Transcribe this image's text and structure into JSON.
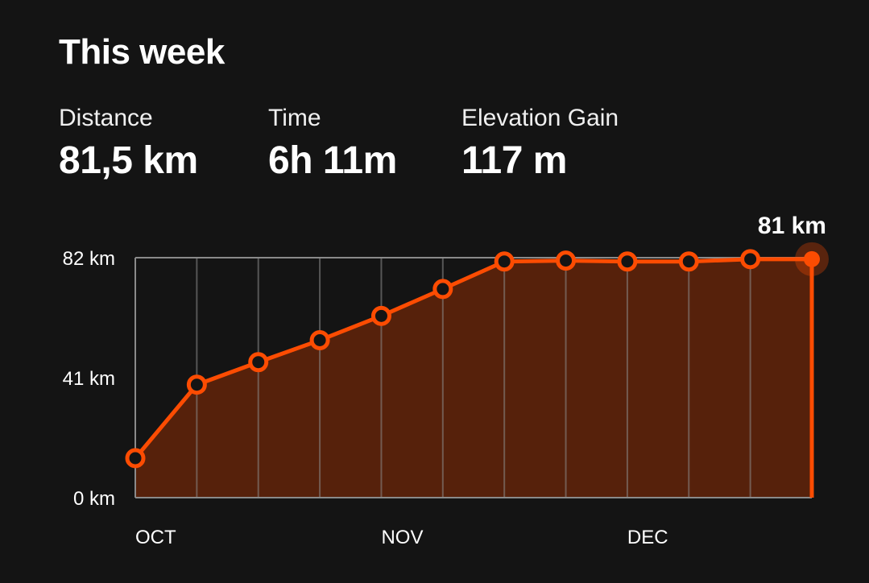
{
  "header": {
    "title": "This week"
  },
  "stats": [
    {
      "label": "Distance",
      "value": "81,5 km"
    },
    {
      "label": "Time",
      "value": "6h 11m"
    },
    {
      "label": "Elevation Gain",
      "value": "117 m"
    }
  ],
  "colors": {
    "accent": "#fc4c02",
    "fill": "#56210b",
    "grid": "#6e6e6e",
    "background": "#141414"
  },
  "chart_data": {
    "type": "area",
    "title": "",
    "xlabel": "",
    "ylabel": "",
    "ylim": [
      0,
      82
    ],
    "y_ticks": [
      {
        "value": 0,
        "label": "0 km"
      },
      {
        "value": 41,
        "label": "41 km"
      },
      {
        "value": 82,
        "label": "82 km"
      }
    ],
    "month_labels": [
      {
        "index": 0,
        "label": "OCT"
      },
      {
        "index": 4,
        "label": "NOV"
      },
      {
        "index": 8,
        "label": "DEC"
      }
    ],
    "grid": true,
    "series": [
      {
        "values": [
          13.5,
          38.6,
          46.3,
          53.8,
          62.1,
          71.3,
          80.7,
          81.0,
          80.7,
          80.7,
          81.5,
          81.5
        ]
      }
    ],
    "callout": {
      "index": 11,
      "label": "81 km"
    }
  }
}
